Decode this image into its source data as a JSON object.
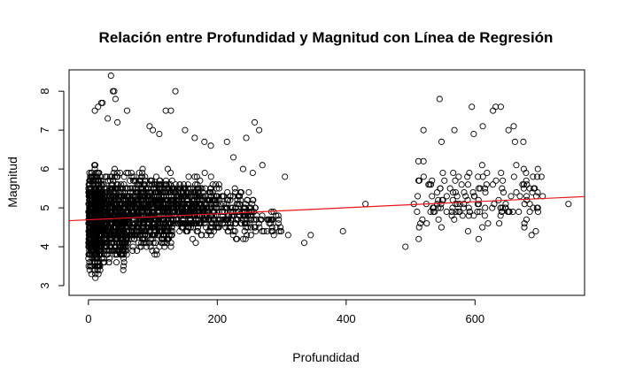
{
  "chart_data": {
    "type": "scatter",
    "title": "Relación entre Profundidad y Magnitud con Línea de Regresión",
    "xlabel": "Profundidad",
    "ylabel": "Magnitud",
    "xlim": [
      -30,
      770
    ],
    "ylim": [
      2.75,
      8.55
    ],
    "xticks": [
      0,
      200,
      400,
      600
    ],
    "yticks": [
      3,
      4,
      5,
      6,
      7,
      8
    ],
    "grid": false,
    "legend": "none",
    "point_color": "#000000",
    "regression_color": "#e8161b",
    "regression": {
      "x": [
        -30,
        770
      ],
      "y": [
        4.67,
        5.29
      ]
    },
    "clusters": [
      {
        "x": [
          0,
          20
        ],
        "y": [
          3.0,
          6.3
        ],
        "count": 900
      },
      {
        "x": [
          20,
          60
        ],
        "y": [
          3.2,
          6.2
        ],
        "count": 700
      },
      {
        "x": [
          60,
          130
        ],
        "y": [
          3.6,
          6.2
        ],
        "count": 750
      },
      {
        "x": [
          130,
          200
        ],
        "y": [
          4.0,
          6.0
        ],
        "count": 450
      },
      {
        "x": [
          200,
          260
        ],
        "y": [
          4.0,
          5.7
        ],
        "count": 160
      },
      {
        "x": [
          260,
          300
        ],
        "y": [
          4.1,
          5.2
        ],
        "count": 35
      },
      {
        "x": [
          510,
          700
        ],
        "y": [
          4.0,
          6.4
        ],
        "count": 150
      }
    ],
    "points": [
      {
        "x": 35,
        "y": 8.4
      },
      {
        "x": 38,
        "y": 8.0
      },
      {
        "x": 40,
        "y": 8.0
      },
      {
        "x": 135,
        "y": 8.0
      },
      {
        "x": 42,
        "y": 7.8
      },
      {
        "x": 20,
        "y": 7.7
      },
      {
        "x": 22,
        "y": 7.7
      },
      {
        "x": 15,
        "y": 7.6
      },
      {
        "x": 10,
        "y": 7.5
      },
      {
        "x": 60,
        "y": 7.5
      },
      {
        "x": 120,
        "y": 7.5
      },
      {
        "x": 128,
        "y": 7.5
      },
      {
        "x": 30,
        "y": 7.3
      },
      {
        "x": 45,
        "y": 7.2
      },
      {
        "x": 95,
        "y": 7.1
      },
      {
        "x": 100,
        "y": 7.0
      },
      {
        "x": 110,
        "y": 6.9
      },
      {
        "x": 150,
        "y": 7.0
      },
      {
        "x": 165,
        "y": 6.8
      },
      {
        "x": 180,
        "y": 6.7
      },
      {
        "x": 190,
        "y": 6.6
      },
      {
        "x": 215,
        "y": 6.7
      },
      {
        "x": 258,
        "y": 7.2
      },
      {
        "x": 265,
        "y": 7.0
      },
      {
        "x": 245,
        "y": 6.8
      },
      {
        "x": 225,
        "y": 6.3
      },
      {
        "x": 270,
        "y": 6.1
      },
      {
        "x": 240,
        "y": 6.0
      },
      {
        "x": 255,
        "y": 5.9
      },
      {
        "x": 305,
        "y": 5.8
      },
      {
        "x": 310,
        "y": 4.3
      },
      {
        "x": 335,
        "y": 4.1
      },
      {
        "x": 345,
        "y": 4.3
      },
      {
        "x": 395,
        "y": 4.4
      },
      {
        "x": 430,
        "y": 5.1
      },
      {
        "x": 492,
        "y": 4.0
      },
      {
        "x": 505,
        "y": 5.1
      },
      {
        "x": 510,
        "y": 4.9
      },
      {
        "x": 545,
        "y": 7.8
      },
      {
        "x": 568,
        "y": 7.0
      },
      {
        "x": 595,
        "y": 7.6
      },
      {
        "x": 628,
        "y": 7.5
      },
      {
        "x": 632,
        "y": 7.6
      },
      {
        "x": 640,
        "y": 7.6
      },
      {
        "x": 612,
        "y": 7.1
      },
      {
        "x": 598,
        "y": 6.9
      },
      {
        "x": 652,
        "y": 7.0
      },
      {
        "x": 660,
        "y": 7.1
      },
      {
        "x": 520,
        "y": 7.0
      },
      {
        "x": 548,
        "y": 6.7
      },
      {
        "x": 662,
        "y": 6.7
      },
      {
        "x": 675,
        "y": 6.7
      },
      {
        "x": 690,
        "y": 5.8
      },
      {
        "x": 703,
        "y": 5.8
      },
      {
        "x": 695,
        "y": 5.3
      },
      {
        "x": 705,
        "y": 5.3
      },
      {
        "x": 745,
        "y": 5.1
      },
      {
        "x": 520,
        "y": 6.2
      },
      {
        "x": 680,
        "y": 5.3
      }
    ]
  }
}
